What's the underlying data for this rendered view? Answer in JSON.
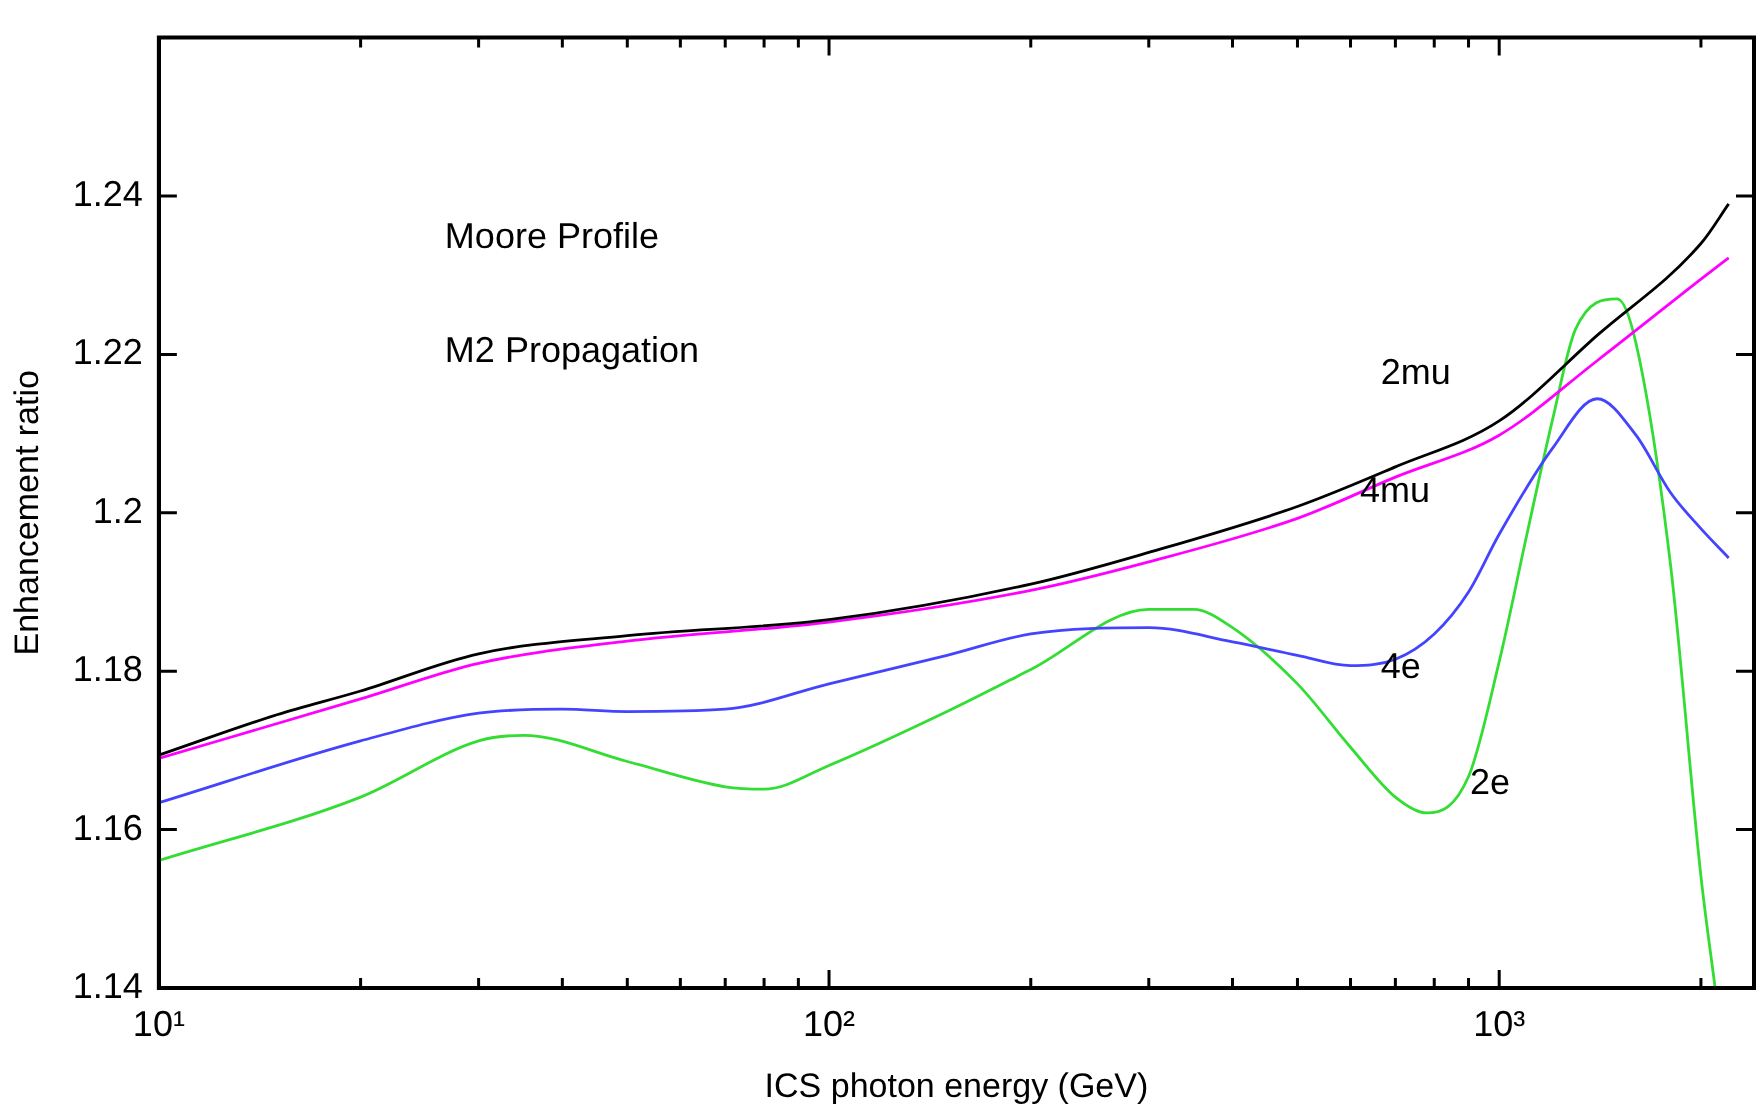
{
  "chart_data": {
    "type": "line",
    "xlabel": "ICS photon energy (GeV)",
    "ylabel": "Enhancement ratio",
    "log": "x",
    "grid": false,
    "legend": false,
    "xlim": [
      10,
      2400
    ],
    "ylim": [
      1.14,
      1.26
    ],
    "xticks": [
      {
        "value": 10,
        "label": "10¹"
      },
      {
        "value": 20,
        "label": null
      },
      {
        "value": 30,
        "label": null
      },
      {
        "value": 40,
        "label": null
      },
      {
        "value": 50,
        "label": null
      },
      {
        "value": 60,
        "label": null
      },
      {
        "value": 70,
        "label": null
      },
      {
        "value": 80,
        "label": null
      },
      {
        "value": 90,
        "label": null
      },
      {
        "value": 100,
        "label": "10²"
      },
      {
        "value": 200,
        "label": null
      },
      {
        "value": 300,
        "label": null
      },
      {
        "value": 400,
        "label": null
      },
      {
        "value": 500,
        "label": null
      },
      {
        "value": 600,
        "label": null
      },
      {
        "value": 700,
        "label": null
      },
      {
        "value": 800,
        "label": null
      },
      {
        "value": 900,
        "label": null
      },
      {
        "value": 1000,
        "label": "10³"
      },
      {
        "value": 2000,
        "label": null
      }
    ],
    "yticks": [
      1.14,
      1.16,
      1.18,
      1.2,
      1.22,
      1.24
    ],
    "annotations": [
      "Moore Profile",
      "M2 Propagation"
    ],
    "series": [
      {
        "name": "2mu",
        "color": "#000000",
        "x": [
          10,
          15,
          20,
          30,
          50,
          100,
          200,
          300,
          500,
          700,
          1000,
          1400,
          2000,
          2200
        ],
        "values": [
          1.1694,
          1.1745,
          1.1775,
          1.1822,
          1.1845,
          1.1865,
          1.191,
          1.195,
          1.2008,
          1.2058,
          1.2116,
          1.2224,
          1.234,
          1.239
        ]
      },
      {
        "name": "4mu",
        "color": "#ff00ff",
        "x": [
          10,
          20,
          30,
          50,
          100,
          200,
          300,
          500,
          700,
          1000,
          1400,
          2000,
          2200
        ],
        "values": [
          1.169,
          1.1765,
          1.181,
          1.1838,
          1.1862,
          1.1902,
          1.1938,
          1.1993,
          1.2045,
          1.2098,
          1.2192,
          1.2295,
          1.2322
        ]
      },
      {
        "name": "4e",
        "color": "#4444ff",
        "x": [
          10,
          20,
          30,
          40,
          50,
          70,
          100,
          150,
          200,
          300,
          400,
          500,
          600,
          700,
          800,
          900,
          1000,
          1200,
          1400,
          1600,
          1800,
          2000,
          2200
        ],
        "values": [
          1.1634,
          1.1712,
          1.1747,
          1.1752,
          1.1749,
          1.1752,
          1.1784,
          1.182,
          1.1847,
          1.1855,
          1.1837,
          1.182,
          1.1807,
          1.1815,
          1.1847,
          1.19,
          1.1973,
          1.2081,
          1.2144,
          1.2098,
          1.2026,
          1.198,
          1.1943
        ]
      },
      {
        "name": "2e",
        "color": "#33dd33",
        "x": [
          10,
          20,
          30,
          35,
          50,
          70,
          80,
          100,
          150,
          200,
          300,
          350,
          400,
          500,
          600,
          700,
          780,
          900,
          1000,
          1100,
          1200,
          1300,
          1500,
          1600,
          1800,
          2000,
          2100
        ],
        "values": [
          1.1561,
          1.1641,
          1.1712,
          1.1719,
          1.1686,
          1.1654,
          1.1651,
          1.1681,
          1.1749,
          1.1802,
          1.1878,
          1.1878,
          1.1855,
          1.1784,
          1.1704,
          1.1641,
          1.1621,
          1.1667,
          1.1812,
          1.1973,
          1.2116,
          1.2232,
          1.227,
          1.2214,
          1.1937,
          1.1541,
          1.14
        ]
      }
    ]
  }
}
